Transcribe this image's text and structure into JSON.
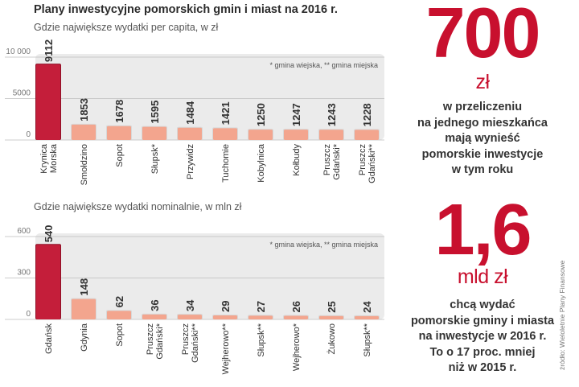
{
  "header": {
    "title": "Plany inwestycyjne pomorskich gmin i miast na 2016 r."
  },
  "chart_data": [
    {
      "type": "bar",
      "title": "Gdzie największe wydatki per capita, w zł",
      "note": "* gmina wiejska, ** gmina miejska",
      "ylim": [
        0,
        10000
      ],
      "ticks": [
        {
          "value": 0,
          "label": "0"
        },
        {
          "value": 5000,
          "label": "5000"
        },
        {
          "value": 10000,
          "label": "10 000"
        }
      ],
      "categories": [
        [
          "Krynica",
          "Morska"
        ],
        [
          "Smołdzino"
        ],
        [
          "Sopot"
        ],
        [
          "Słupsk*"
        ],
        [
          "Przywidz"
        ],
        [
          "Tuchomie"
        ],
        [
          "Kobylnica"
        ],
        [
          "Kołbudy"
        ],
        [
          "Pruszcz",
          "Gdański*"
        ],
        [
          "Pruszcz",
          "Gdański**"
        ]
      ],
      "values": [
        9112,
        1853,
        1678,
        1595,
        1484,
        1421,
        1250,
        1247,
        1243,
        1228
      ],
      "value_labels": [
        "9112",
        "1853",
        "1678",
        "1595",
        "1484",
        "1421",
        "1250",
        "1247",
        "1243",
        "1228"
      ],
      "highlight_index": 0
    },
    {
      "type": "bar",
      "title": "Gdzie największe wydatki nominalnie, w mln zł",
      "note": "* gmina wiejska, ** gmina miejska",
      "ylim": [
        0,
        600
      ],
      "ticks": [
        {
          "value": 0,
          "label": "0"
        },
        {
          "value": 300,
          "label": "300"
        },
        {
          "value": 600,
          "label": "600"
        }
      ],
      "categories": [
        [
          "Gdańsk"
        ],
        [
          "Gdynia"
        ],
        [
          "Sopot"
        ],
        [
          "Pruszcz",
          "Gdański*"
        ],
        [
          "Pruszcz",
          "Gdański**"
        ],
        [
          "Wejherowo**"
        ],
        [
          "Słupsk**"
        ],
        [
          "Wejherowo*"
        ],
        [
          "Żukowo"
        ],
        [
          "Słupsk**"
        ]
      ],
      "values": [
        540,
        148,
        62,
        36,
        34,
        29,
        27,
        26,
        25,
        24
      ],
      "value_labels": [
        "540",
        "148",
        "62",
        "36",
        "34",
        "29",
        "27",
        "26",
        "25",
        "24"
      ],
      "highlight_index": 0
    }
  ],
  "sidebar": {
    "stat1": {
      "value": "700",
      "unit": "zł",
      "lines": [
        "w przeliczeniu",
        "na jednego mieszkańca",
        "mają wynieść",
        "pomorskie inwestycje",
        "w tym roku"
      ]
    },
    "stat2": {
      "value": "1,6",
      "unit": "mld zł",
      "lines": [
        "chcą wydać",
        "pomorskie gminy i miasta",
        "na inwestycje w 2016 r.",
        "To o 17 proc. mniej",
        "niż w 2015 r."
      ]
    }
  },
  "source": "źródło: Wieloletnie Plany Finansowe",
  "colors": {
    "accent": "#c8102e",
    "bar_main": "#c41e3a",
    "bar_main_edge": "#8f1127",
    "bar_other": "#f3a58e",
    "bar_other_edge": "#d8d8d8",
    "panel_bg": "#ebebeb",
    "grid": "#bdbdbd"
  }
}
